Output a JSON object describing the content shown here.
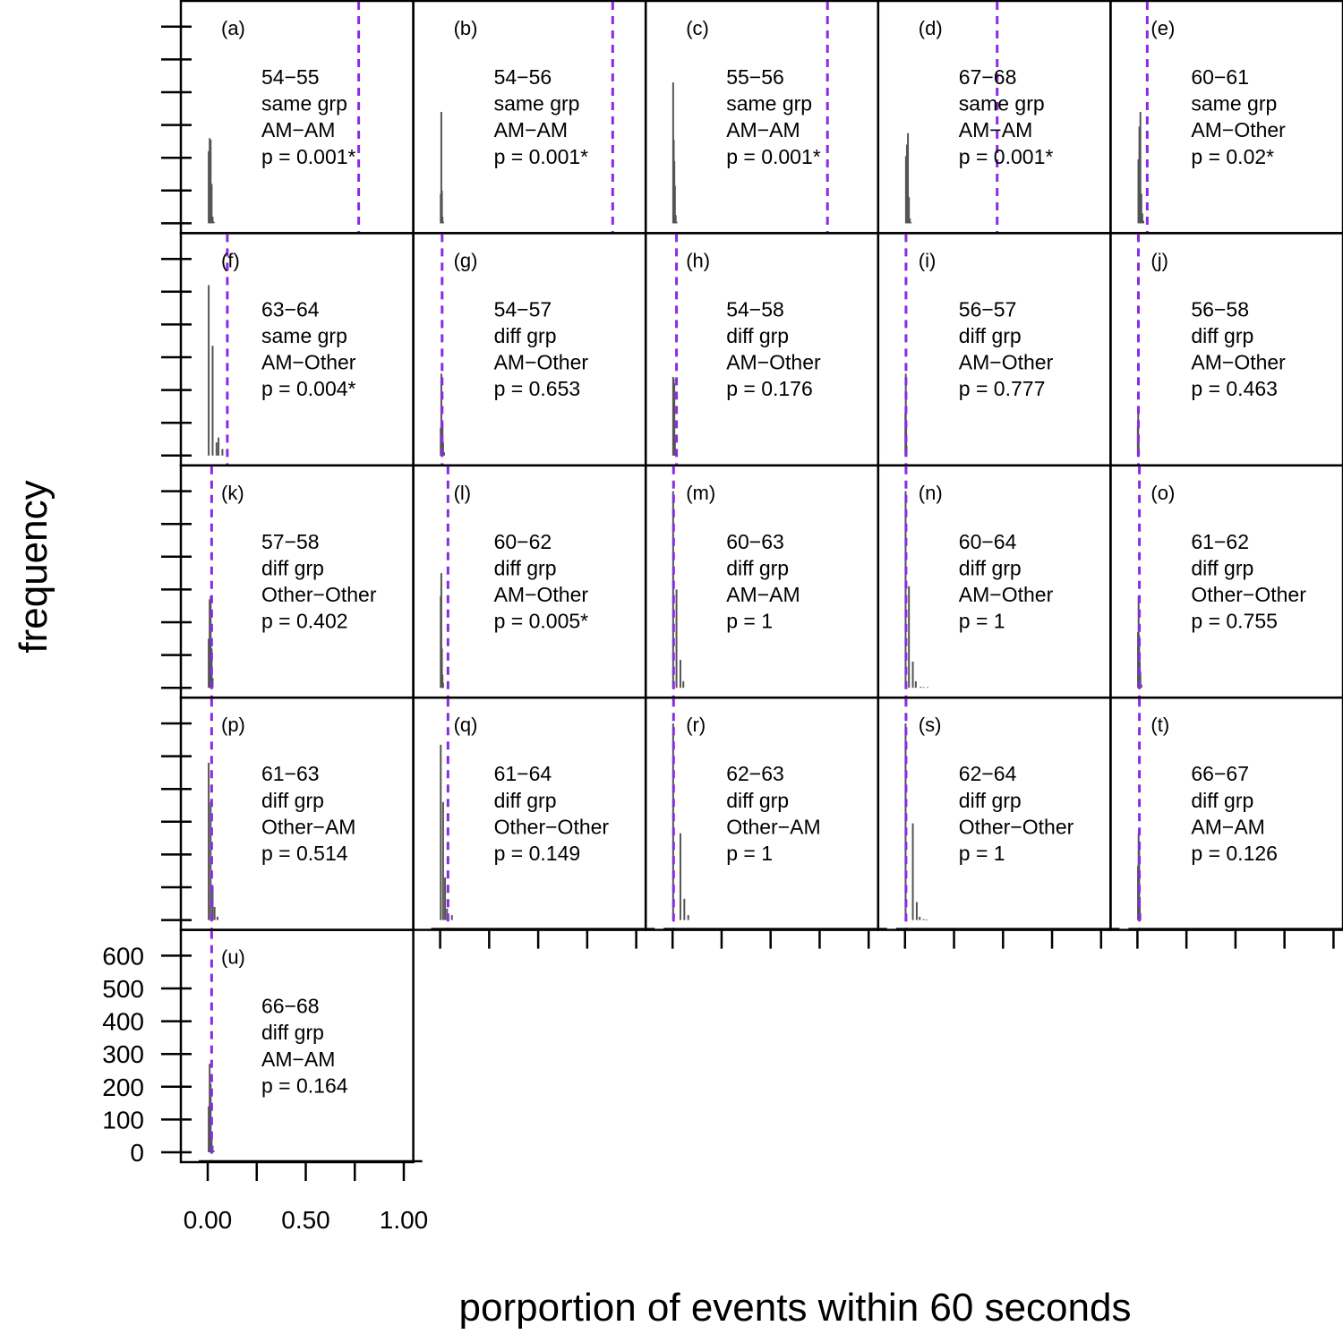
{
  "chart_data": {
    "type": "bar",
    "description_layout": "small multiples",
    "xlabel": "porportion of events within 60 seconds",
    "ylabel": "frequency",
    "xlim": [
      0,
      1.0
    ],
    "ylim": [
      0,
      600
    ],
    "x_ticks": [
      0,
      0.25,
      0.5,
      0.75,
      1.0
    ],
    "x_tick_labels": [
      "0.00",
      "0.50",
      "1.00"
    ],
    "y_ticks": [
      0,
      100,
      200,
      300,
      400,
      500,
      600
    ],
    "y_tick_labels": [
      "0",
      "100",
      "200",
      "300",
      "400",
      "500",
      "600"
    ],
    "reference_line_color": "#8a2be2",
    "bar_color": "#555555",
    "panels": [
      {
        "tag": "(a)",
        "pair": "54−55",
        "group": "same grp",
        "types": "AM−AM",
        "p": "p = 0.001*",
        "observed": 0.77,
        "bins": [
          [
            0.005,
            220
          ],
          [
            0.01,
            260
          ],
          [
            0.015,
            255
          ],
          [
            0.02,
            120
          ],
          [
            0.025,
            20
          ],
          [
            0.03,
            5
          ]
        ]
      },
      {
        "tag": "(b)",
        "pair": "54−56",
        "group": "same grp",
        "types": "AM−AM",
        "p": "p = 0.001*",
        "observed": 0.88,
        "bins": [
          [
            0.003,
            90
          ],
          [
            0.006,
            340
          ],
          [
            0.009,
            100
          ],
          [
            0.012,
            20
          ],
          [
            0.015,
            5
          ]
        ]
      },
      {
        "tag": "(c)",
        "pair": "55−56",
        "group": "same grp",
        "types": "AM−AM",
        "p": "p = 0.001*",
        "observed": 0.79,
        "bins": [
          [
            0.003,
            430
          ],
          [
            0.006,
            255
          ],
          [
            0.009,
            190
          ],
          [
            0.012,
            115
          ],
          [
            0.016,
            25
          ],
          [
            0.02,
            5
          ]
        ]
      },
      {
        "tag": "(d)",
        "pair": "67−68",
        "group": "same grp",
        "types": "AM−AM",
        "p": "p = 0.001*",
        "observed": 0.47,
        "bins": [
          [
            0.005,
            205
          ],
          [
            0.01,
            240
          ],
          [
            0.015,
            275
          ],
          [
            0.02,
            80
          ],
          [
            0.025,
            15
          ],
          [
            0.03,
            3
          ]
        ]
      },
      {
        "tag": "(e)",
        "pair": "60−61",
        "group": "same grp",
        "types": "AM−Other",
        "p": "p = 0.02*",
        "observed": 0.05,
        "bins": [
          [
            0.005,
            195
          ],
          [
            0.01,
            295
          ],
          [
            0.015,
            340
          ],
          [
            0.02,
            90
          ],
          [
            0.025,
            30
          ],
          [
            0.03,
            8
          ]
        ]
      },
      {
        "tag": "(f)",
        "pair": "63−64",
        "group": "same grp",
        "types": "AM−Other",
        "p": "p = 0.004*",
        "observed": 0.1,
        "bins": [
          [
            0.005,
            520
          ],
          [
            0.025,
            335
          ],
          [
            0.045,
            40
          ],
          [
            0.055,
            55
          ],
          [
            0.075,
            20
          ]
        ]
      },
      {
        "tag": "(g)",
        "pair": "54−57",
        "group": "diff grp",
        "types": "AM−Other",
        "p": "p = 0.653",
        "observed": 0.01,
        "bins": [
          [
            0.003,
            85
          ],
          [
            0.006,
            250
          ],
          [
            0.009,
            100
          ],
          [
            0.012,
            95
          ],
          [
            0.015,
            40
          ],
          [
            0.02,
            10
          ]
        ]
      },
      {
        "tag": "(h)",
        "pair": "54−58",
        "group": "diff grp",
        "types": "AM−Other",
        "p": "p = 0.176",
        "observed": 0.02,
        "bins": [
          [
            0.003,
            240
          ],
          [
            0.006,
            235
          ],
          [
            0.009,
            220
          ],
          [
            0.012,
            60
          ],
          [
            0.015,
            10
          ]
        ]
      },
      {
        "tag": "(i)",
        "pair": "56−57",
        "group": "diff grp",
        "types": "AM−Other",
        "p": "p = 0.777",
        "observed": 0.005,
        "bins": [
          [
            0.002,
            130
          ],
          [
            0.004,
            250
          ],
          [
            0.006,
            100
          ],
          [
            0.008,
            30
          ]
        ]
      },
      {
        "tag": "(j)",
        "pair": "56−58",
        "group": "diff grp",
        "types": "AM−Other",
        "p": "p = 0.463",
        "observed": 0.005,
        "bins": [
          [
            0.002,
            90
          ],
          [
            0.004,
            140
          ],
          [
            0.006,
            60
          ],
          [
            0.008,
            20
          ]
        ]
      },
      {
        "tag": "(k)",
        "pair": "57−58",
        "group": "diff grp",
        "types": "Other−Other",
        "p": "p = 0.402",
        "observed": 0.02,
        "bins": [
          [
            0.005,
            150
          ],
          [
            0.01,
            270
          ],
          [
            0.015,
            280
          ],
          [
            0.02,
            120
          ],
          [
            0.025,
            30
          ]
        ]
      },
      {
        "tag": "(l)",
        "pair": "60−62",
        "group": "diff grp",
        "types": "AM−Other",
        "p": "p = 0.005*",
        "observed": 0.04,
        "bins": [
          [
            0.003,
            280
          ],
          [
            0.006,
            350
          ],
          [
            0.009,
            120
          ],
          [
            0.012,
            40
          ],
          [
            0.015,
            15
          ]
        ]
      },
      {
        "tag": "(m)",
        "pair": "60−63",
        "group": "diff grp",
        "types": "AM−AM",
        "p": "p = 1",
        "observed": 0.005,
        "bins": [
          [
            0.003,
            600
          ],
          [
            0.02,
            300
          ],
          [
            0.04,
            85
          ],
          [
            0.055,
            20
          ]
        ]
      },
      {
        "tag": "(n)",
        "pair": "60−64",
        "group": "diff grp",
        "types": "AM−Other",
        "p": "p = 1",
        "observed": 0.005,
        "bins": [
          [
            0.003,
            600
          ],
          [
            0.02,
            310
          ],
          [
            0.04,
            80
          ],
          [
            0.055,
            20
          ],
          [
            0.08,
            3
          ],
          [
            0.095,
            2
          ],
          [
            0.115,
            2
          ]
        ]
      },
      {
        "tag": "(o)",
        "pair": "61−62",
        "group": "diff grp",
        "types": "Other−Other",
        "p": "p = 0.755",
        "observed": 0.01,
        "bins": [
          [
            0.003,
            170
          ],
          [
            0.006,
            280
          ],
          [
            0.009,
            160
          ],
          [
            0.012,
            80
          ],
          [
            0.015,
            50
          ],
          [
            0.02,
            10
          ]
        ]
      },
      {
        "tag": "(p)",
        "pair": "61−63",
        "group": "diff grp",
        "types": "Other−AM",
        "p": "p = 0.514",
        "observed": 0.02,
        "bins": [
          [
            0.005,
            480
          ],
          [
            0.015,
            360
          ],
          [
            0.025,
            105
          ],
          [
            0.035,
            40
          ],
          [
            0.05,
            10
          ]
        ]
      },
      {
        "tag": "(q)",
        "pair": "61−64",
        "group": "diff grp",
        "types": "Other−Other",
        "p": "p = 0.149",
        "observed": 0.04,
        "bins": [
          [
            0.003,
            535
          ],
          [
            0.015,
            360
          ],
          [
            0.025,
            130
          ],
          [
            0.035,
            35
          ],
          [
            0.06,
            15
          ]
        ]
      },
      {
        "tag": "(r)",
        "pair": "62−63",
        "group": "diff grp",
        "types": "Other−AM",
        "p": "p = 1",
        "observed": 0.005,
        "bins": [
          [
            0.003,
            600
          ],
          [
            0.04,
            265
          ],
          [
            0.06,
            65
          ],
          [
            0.08,
            15
          ]
        ]
      },
      {
        "tag": "(s)",
        "pair": "62−64",
        "group": "diff grp",
        "types": "Other−Other",
        "p": "p = 1",
        "observed": 0.005,
        "bins": [
          [
            0.003,
            600
          ],
          [
            0.04,
            295
          ],
          [
            0.06,
            55
          ],
          [
            0.075,
            10
          ],
          [
            0.095,
            3
          ],
          [
            0.11,
            2
          ]
        ]
      },
      {
        "tag": "(t)",
        "pair": "66−67",
        "group": "diff grp",
        "types": "AM−AM",
        "p": "p = 0.126",
        "observed": 0.01,
        "bins": [
          [
            0.003,
            165
          ],
          [
            0.006,
            265
          ],
          [
            0.009,
            240
          ],
          [
            0.012,
            70
          ],
          [
            0.015,
            20
          ]
        ]
      },
      {
        "tag": "(u)",
        "pair": "66−68",
        "group": "diff grp",
        "types": "AM−AM",
        "p": "p = 0.164",
        "observed": 0.02,
        "bins": [
          [
            0.005,
            140
          ],
          [
            0.01,
            270
          ],
          [
            0.015,
            210
          ],
          [
            0.02,
            60
          ],
          [
            0.025,
            20
          ],
          [
            0.03,
            5
          ]
        ]
      }
    ]
  }
}
